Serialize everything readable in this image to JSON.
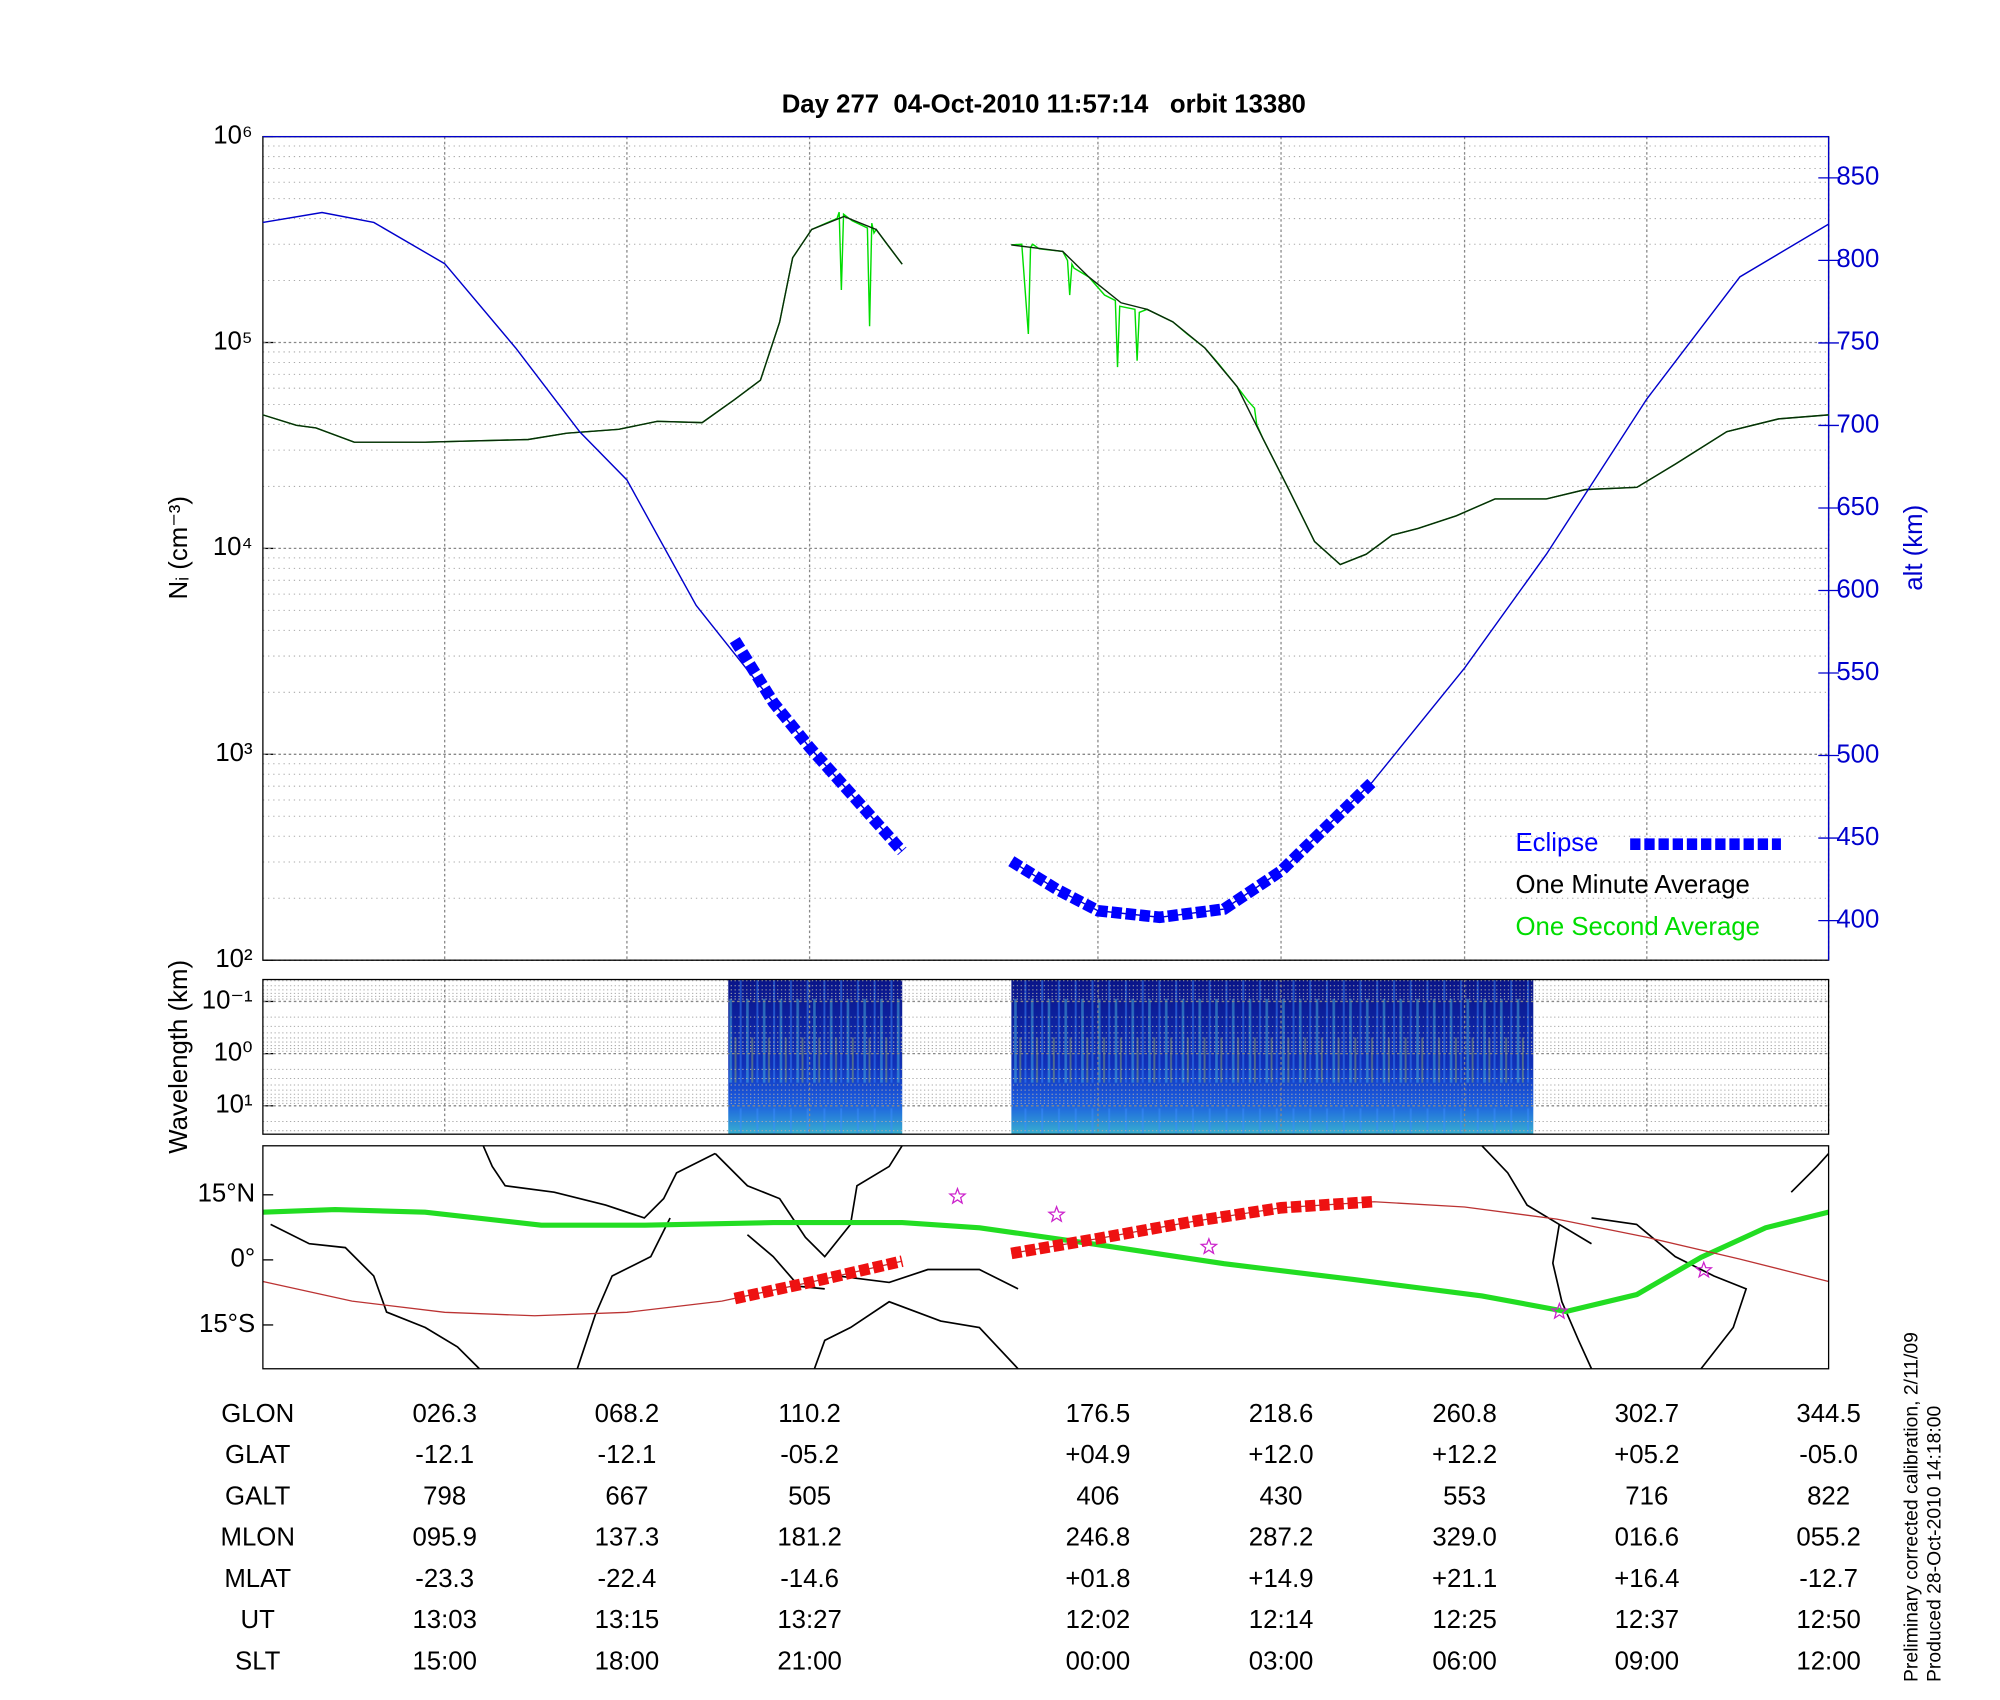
{
  "chart_data": [
    {
      "type": "line",
      "title": "Day 277  04-Oct-2010 11:57:14   orbit 13380",
      "ylabel": "Nᵢ (cm⁻³)",
      "y2label": "alt (km)",
      "log_y": true,
      "grid": true,
      "legend": "lower right",
      "xlim": [
        -15.5,
        344.5
      ],
      "xticks": [
        26.3,
        68.2,
        110.2,
        176.5,
        218.6,
        260.8,
        302.7,
        344.5
      ],
      "ylim": [
        100,
        1000000
      ],
      "yticks": [
        {
          "value": 100,
          "label": "10²"
        },
        {
          "value": 1000,
          "label": "10³"
        },
        {
          "value": 10000,
          "label": "10⁴"
        },
        {
          "value": 100000,
          "label": "10⁵"
        },
        {
          "value": 1000000,
          "label": "10⁶"
        }
      ],
      "y2lim": [
        376,
        875
      ],
      "y2ticks": [
        400,
        450,
        500,
        550,
        600,
        650,
        700,
        750,
        800,
        850
      ],
      "y2color": "#0000cc",
      "series": [
        {
          "name": "One Second Average",
          "color": "#00dd00",
          "x": [
            -15.5,
            -7.8,
            -3.3,
            5.5,
            21.8,
            45.5,
            54.4,
            66.3,
            75.2,
            85.5,
            92.9,
            98.9,
            103.3,
            106.3,
            110.7,
            114,
            116.5,
            117,
            117.5,
            118,
            120,
            123.5,
            124,
            124.5,
            125,
            125.5,
            128,
            131.5,
            144,
            156.6,
            159,
            160.5,
            161,
            161.5,
            163,
            168.4,
            169.5,
            170,
            170.5,
            171,
            174.4,
            178,
            180.5,
            181,
            181.5,
            183,
            185,
            185.5,
            186,
            187.8,
            193.7,
            197,
            201.1,
            204,
            208.5,
            211,
            212.5,
            213,
            214.4,
            220.4,
            226.3,
            232.2,
            238.2,
            244.1,
            250.1,
            258.9,
            267.8,
            279.6,
            288.5,
            300.4,
            309.3,
            321.1,
            333,
            344.5
          ],
          "values": [
            44500,
            39600,
            38500,
            32800,
            32800,
            33800,
            36300,
            37900,
            41400,
            40800,
            52800,
            65600,
            125600,
            258000,
            354000,
            380000,
            400000,
            430000,
            180000,
            420000,
            390000,
            360000,
            120000,
            380000,
            340000,
            354000,
            300000,
            240000,
            null,
            298000,
            300000,
            110000,
            290000,
            300000,
            285000,
            277000,
            250000,
            170000,
            240000,
            230000,
            208000,
            170000,
            160000,
            76000,
            150000,
            148000,
            145000,
            81500,
            140000,
            145000,
            126000,
            110000,
            94000,
            80000,
            61000,
            52000,
            48000,
            40000,
            34300,
            19300,
            10800,
            8350,
            9370,
            11600,
            12500,
            14400,
            17400,
            17400,
            19300,
            19800,
            25700,
            36900,
            42600,
            44500
          ]
        },
        {
          "name": "One Minute Average",
          "color": "#0a2a0a",
          "x": [
            -15.5,
            -7.8,
            -3.3,
            5.5,
            21.8,
            45.5,
            54.4,
            66.3,
            75.2,
            85.5,
            92.9,
            98.9,
            103.3,
            106.3,
            110.7,
            118.1,
            125.5,
            131.5,
            144,
            156.6,
            161,
            168.4,
            174.4,
            181.8,
            187.8,
            193.7,
            201.1,
            208.5,
            214.4,
            220.4,
            226.3,
            232.2,
            238.2,
            244.1,
            250.1,
            258.9,
            267.8,
            279.6,
            288.5,
            300.4,
            309.3,
            321.1,
            333,
            344.5
          ],
          "values": [
            44500,
            39600,
            38500,
            32800,
            32800,
            33800,
            36300,
            37900,
            41400,
            40800,
            52800,
            65600,
            125600,
            258000,
            354000,
            409000,
            354000,
            240000,
            null,
            298000,
            290000,
            277000,
            208000,
            156000,
            145000,
            126000,
            94000,
            61000,
            34300,
            19300,
            10800,
            8350,
            9370,
            11600,
            12500,
            14400,
            17400,
            17400,
            19300,
            19800,
            25700,
            36900,
            42600,
            44500
          ]
        },
        {
          "color": "#0000cc",
          "axis": "y2",
          "x": [
            -15.5,
            -1.9,
            10,
            26.3,
            42.6,
            57.4,
            68.2,
            84.1,
            101.9,
            110.2,
            131.5,
            144,
            156.6,
            167,
            176.5,
            190.7,
            205.5,
            218.6,
            239.6,
            260.8,
            279.6,
            302.7,
            324.1,
            344.5
          ],
          "values": [
            823,
            829,
            823,
            798,
            747,
            696,
            667,
            591,
            532,
            505,
            442,
            null,
            436,
            419,
            406,
            402,
            407,
            430,
            484,
            553,
            622,
            716,
            790,
            822
          ]
        },
        {
          "name": "Eclipse",
          "color": "#0000ff",
          "axis": "y2",
          "marker": "square",
          "x": [
            93,
            101.9,
            110.2,
            131.5,
            144,
            156.6,
            167,
            176.5,
            190.7,
            205.5,
            218.6,
            239.6
          ],
          "values": [
            570,
            532,
            505,
            442,
            null,
            436,
            419,
            406,
            402,
            407,
            430,
            484
          ]
        }
      ]
    },
    {
      "type": "spectrogram",
      "ylabel": "Wavelength (km)",
      "log_y": true,
      "reversed": true,
      "xlim": [
        -15.5,
        344.5
      ],
      "xticks": [
        26.3,
        68.2,
        110.2,
        176.5,
        218.6,
        260.8,
        302.7,
        344.5
      ],
      "ylim": [
        0.038,
        35
      ],
      "yticks": [
        {
          "value": 0.1,
          "label": "10⁻¹"
        },
        {
          "value": 1,
          "label": "10⁰"
        },
        {
          "value": 10,
          "label": "10¹"
        }
      ],
      "segments": [
        [
          91.5,
          131.5
        ],
        [
          156.6,
          276.6
        ]
      ]
    },
    {
      "type": "map",
      "xlim": [
        -15.5,
        344.5
      ],
      "ylim": [
        -25.1,
        26.3
      ],
      "yticks": [
        {
          "value": 15,
          "label": "15°N"
        },
        {
          "value": 0,
          "label": "0°"
        },
        {
          "value": -15,
          "label": "15°S"
        }
      ],
      "series": [
        {
          "color": "#22dd22",
          "x": [
            -15.5,
            1.1,
            21.8,
            48.5,
            72.3,
            101.9,
            131.5,
            149.3,
            175.9,
            205.5,
            235.2,
            264.8,
            284.1,
            300.4,
            315.2,
            330,
            344.5
          ],
          "values": [
            11.0,
            11.6,
            11.0,
            8.0,
            8.0,
            8.6,
            8.6,
            7.4,
            3.6,
            -0.9,
            -4.5,
            -8.3,
            -11.9,
            -8.0,
            0.6,
            7.4,
            11.0
          ]
        },
        {
          "color": "#bb3333",
          "x": [
            -15.5,
            5,
            26.3,
            47,
            68.2,
            90,
            110.2,
            131.5,
            144,
            156.6,
            176.5,
            198,
            218.6,
            240,
            260.8,
            282,
            302.7,
            324,
            344.5
          ],
          "values": [
            -5.0,
            -9.5,
            -12.1,
            -12.9,
            -12.1,
            -9.5,
            -5.2,
            -0.3,
            null,
            1.5,
            4.9,
            8.8,
            12.0,
            13.4,
            12.2,
            9.4,
            5.2,
            0.2,
            -5.0
          ]
        },
        {
          "color": "#ee1111",
          "marker": "square",
          "x": [
            93,
            110.2,
            131.5,
            144,
            156.6,
            176.5,
            198,
            218.6,
            239.6
          ],
          "values": [
            -8.9,
            -5.2,
            -0.3,
            null,
            1.5,
            4.9,
            8.8,
            12.0,
            13.4
          ]
        }
      ],
      "markers": {
        "color": "#cc22cc",
        "x": [
          144.2,
          167,
          202,
          282.6,
          315.8
        ],
        "values": [
          14.6,
          10.4,
          3.0,
          -11.9,
          -2.4
        ]
      }
    }
  ],
  "table": {
    "rows": [
      [
        "GLON",
        "026.3",
        "068.2",
        "110.2",
        "176.5",
        "218.6",
        "260.8",
        "302.7",
        "344.5"
      ],
      [
        "GLAT",
        "-12.1",
        "-12.1",
        "-05.2",
        "+04.9",
        "+12.0",
        "+12.2",
        "+05.2",
        "-05.0"
      ],
      [
        "GALT",
        "798",
        "667",
        "505",
        "406",
        "430",
        "553",
        "716",
        "822"
      ],
      [
        "MLON",
        "095.9",
        "137.3",
        "181.2",
        "246.8",
        "287.2",
        "329.0",
        "016.6",
        "055.2"
      ],
      [
        "MLAT",
        "-23.3",
        "-22.4",
        "-14.6",
        "+01.8",
        "+14.9",
        "+21.1",
        "+16.4",
        "-12.7"
      ],
      [
        "UT",
        "13:03",
        "13:15",
        "13:27",
        "12:02",
        "12:14",
        "12:25",
        "12:37",
        "12:50"
      ],
      [
        "SLT",
        "15:00",
        "18:00",
        "21:00",
        "00:00",
        "03:00",
        "06:00",
        "09:00",
        "12:00"
      ]
    ]
  },
  "notes": [
    "Preliminary corrected calibration, 2/11/09",
    "Produced 28-Oct-2010 14:18:00"
  ]
}
